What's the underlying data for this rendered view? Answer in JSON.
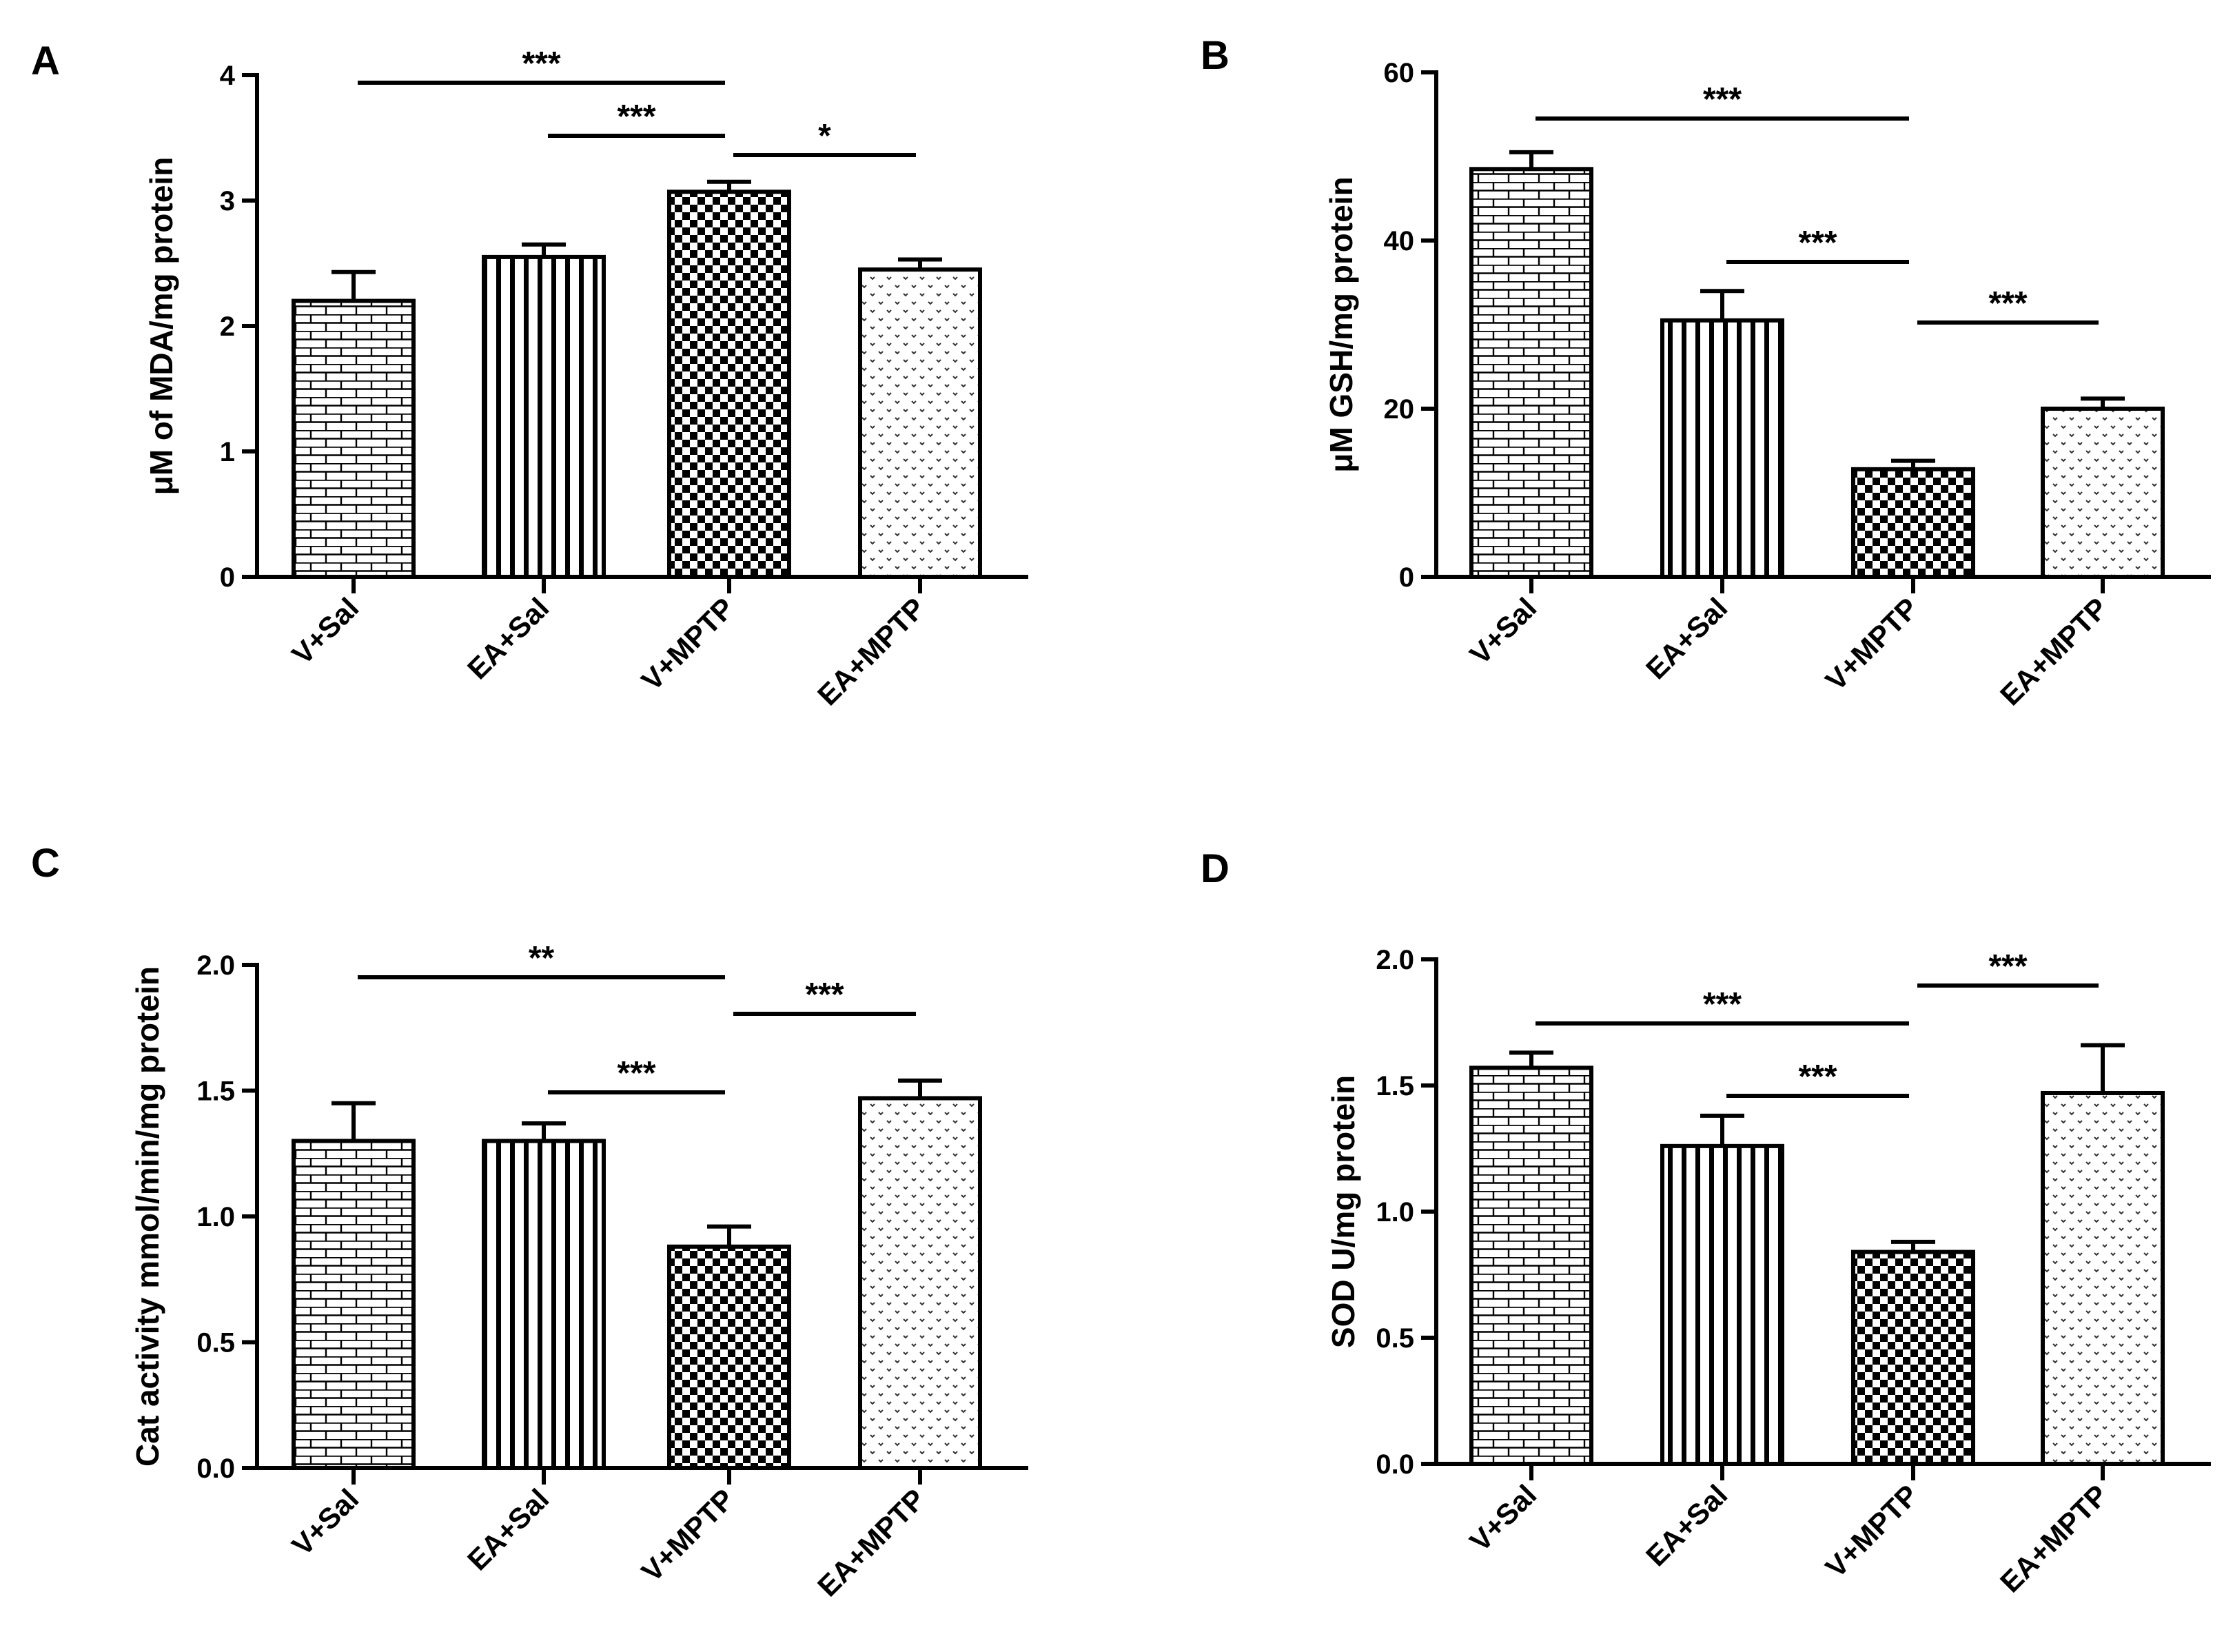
{
  "chart_data": [
    {
      "type": "bar",
      "panel_label": "A",
      "categories": [
        "V+Sal",
        "EA+Sal",
        "V+MPTP",
        "EA+MPTP"
      ],
      "values": [
        2.2,
        2.55,
        3.07,
        2.45
      ],
      "errors": [
        0.23,
        0.1,
        0.08,
        0.08
      ],
      "patterns": [
        "brick",
        "vstripe",
        "checker",
        "dots"
      ],
      "ylabel": "μM of MDA/mg protein",
      "ylim": [
        0,
        4
      ],
      "yticks": [
        0,
        1,
        2,
        3,
        4
      ],
      "tick_decimals": 0,
      "brackets": [
        {
          "from": "V+Sal",
          "to": "V+MPTP",
          "label": "***"
        },
        {
          "from": "EA+Sal",
          "to": "V+MPTP",
          "label": "***"
        },
        {
          "from": "V+MPTP",
          "to": "EA+MPTP",
          "label": "*"
        }
      ]
    },
    {
      "type": "bar",
      "panel_label": "B",
      "categories": [
        "V+Sal",
        "EA+Sal",
        "V+MPTP",
        "EA+MPTP"
      ],
      "values": [
        48.5,
        30.5,
        12.8,
        20.0
      ],
      "errors": [
        2.0,
        3.5,
        1.0,
        1.2
      ],
      "patterns": [
        "brick",
        "vstripe",
        "checker",
        "dots"
      ],
      "ylabel": "μM GSH/mg protein",
      "ylim": [
        0,
        60
      ],
      "yticks": [
        0,
        20,
        40,
        60
      ],
      "tick_decimals": 0,
      "brackets": [
        {
          "from": "V+Sal",
          "to": "V+MPTP",
          "label": "***"
        },
        {
          "from": "EA+Sal",
          "to": "V+MPTP",
          "label": "***"
        },
        {
          "from": "V+MPTP",
          "to": "EA+MPTP",
          "label": "***"
        }
      ]
    },
    {
      "type": "bar",
      "panel_label": "C",
      "categories": [
        "V+Sal",
        "EA+Sal",
        "V+MPTP",
        "EA+MPTP"
      ],
      "values": [
        1.3,
        1.3,
        0.88,
        1.47
      ],
      "errors": [
        0.15,
        0.07,
        0.08,
        0.07
      ],
      "patterns": [
        "brick",
        "vstripe",
        "checker",
        "dots"
      ],
      "ylabel": "Cat activity mmol/min/mg protein",
      "ylim": [
        0,
        2
      ],
      "yticks": [
        0,
        0.5,
        1,
        1.5,
        2
      ],
      "tick_decimals": 1,
      "brackets": [
        {
          "from": "V+Sal",
          "to": "V+MPTP",
          "label": "**"
        },
        {
          "from": "EA+Sal",
          "to": "V+MPTP",
          "label": "***"
        },
        {
          "from": "V+MPTP",
          "to": "EA+MPTP",
          "label": "***"
        }
      ]
    },
    {
      "type": "bar",
      "panel_label": "D",
      "categories": [
        "V+Sal",
        "EA+Sal",
        "V+MPTP",
        "EA+MPTP"
      ],
      "values": [
        1.57,
        1.26,
        0.84,
        1.47
      ],
      "errors": [
        0.06,
        0.12,
        0.04,
        0.19
      ],
      "patterns": [
        "brick",
        "vstripe",
        "checker",
        "dots"
      ],
      "ylabel": "SOD U/mg protein",
      "ylim": [
        0,
        2
      ],
      "yticks": [
        0,
        0.5,
        1,
        1.5,
        2
      ],
      "tick_decimals": 1,
      "brackets": [
        {
          "from": "V+Sal",
          "to": "V+MPTP",
          "label": "***"
        },
        {
          "from": "EA+Sal",
          "to": "V+MPTP",
          "label": "***"
        },
        {
          "from": "V+MPTP",
          "to": "EA+MPTP",
          "label": "***"
        }
      ]
    }
  ]
}
